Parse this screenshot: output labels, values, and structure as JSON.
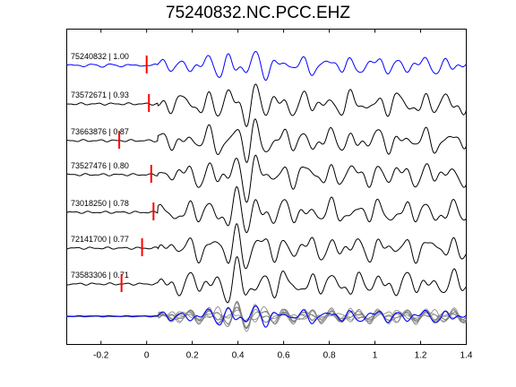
{
  "chart_data": {
    "type": "line",
    "title": "75240832.NC.PCC.EHZ",
    "xlabel": "",
    "ylabel": "",
    "xlim": [
      -0.35,
      1.4
    ],
    "xticks": [
      -0.2,
      0,
      0.2,
      0.4,
      0.6,
      0.8,
      1,
      1.2,
      1.4
    ],
    "xtick_labels": [
      "-0.2",
      "0",
      "0.2",
      "0.4",
      "0.6",
      "0.8",
      "1",
      "1.2",
      "1.4"
    ],
    "grid": false,
    "series": [
      {
        "label": "75240832 | 1.00",
        "pick_time": 0.0,
        "color": "#0000ff",
        "seed": 1
      },
      {
        "label": "73572671 | 0.93",
        "pick_time": 0.01,
        "color": "#000000",
        "seed": 2
      },
      {
        "label": "73663876 | 0.87",
        "pick_time": -0.12,
        "color": "#000000",
        "seed": 3
      },
      {
        "label": "73527476 | 0.80",
        "pick_time": 0.02,
        "color": "#000000",
        "seed": 4
      },
      {
        "label": "73018250 | 0.78",
        "pick_time": 0.03,
        "color": "#000000",
        "seed": 5
      },
      {
        "label": "72141700 | 0.77",
        "pick_time": -0.02,
        "color": "#000000",
        "seed": 6
      },
      {
        "label": "73583306 | 0.71",
        "pick_time": -0.11,
        "color": "#000000",
        "seed": 7
      }
    ],
    "stack": {
      "description": "overlay of aligned waveforms",
      "reference_color": "#0000ff",
      "others_color": "#808080"
    },
    "pick_marker_color": "#ff0000"
  }
}
